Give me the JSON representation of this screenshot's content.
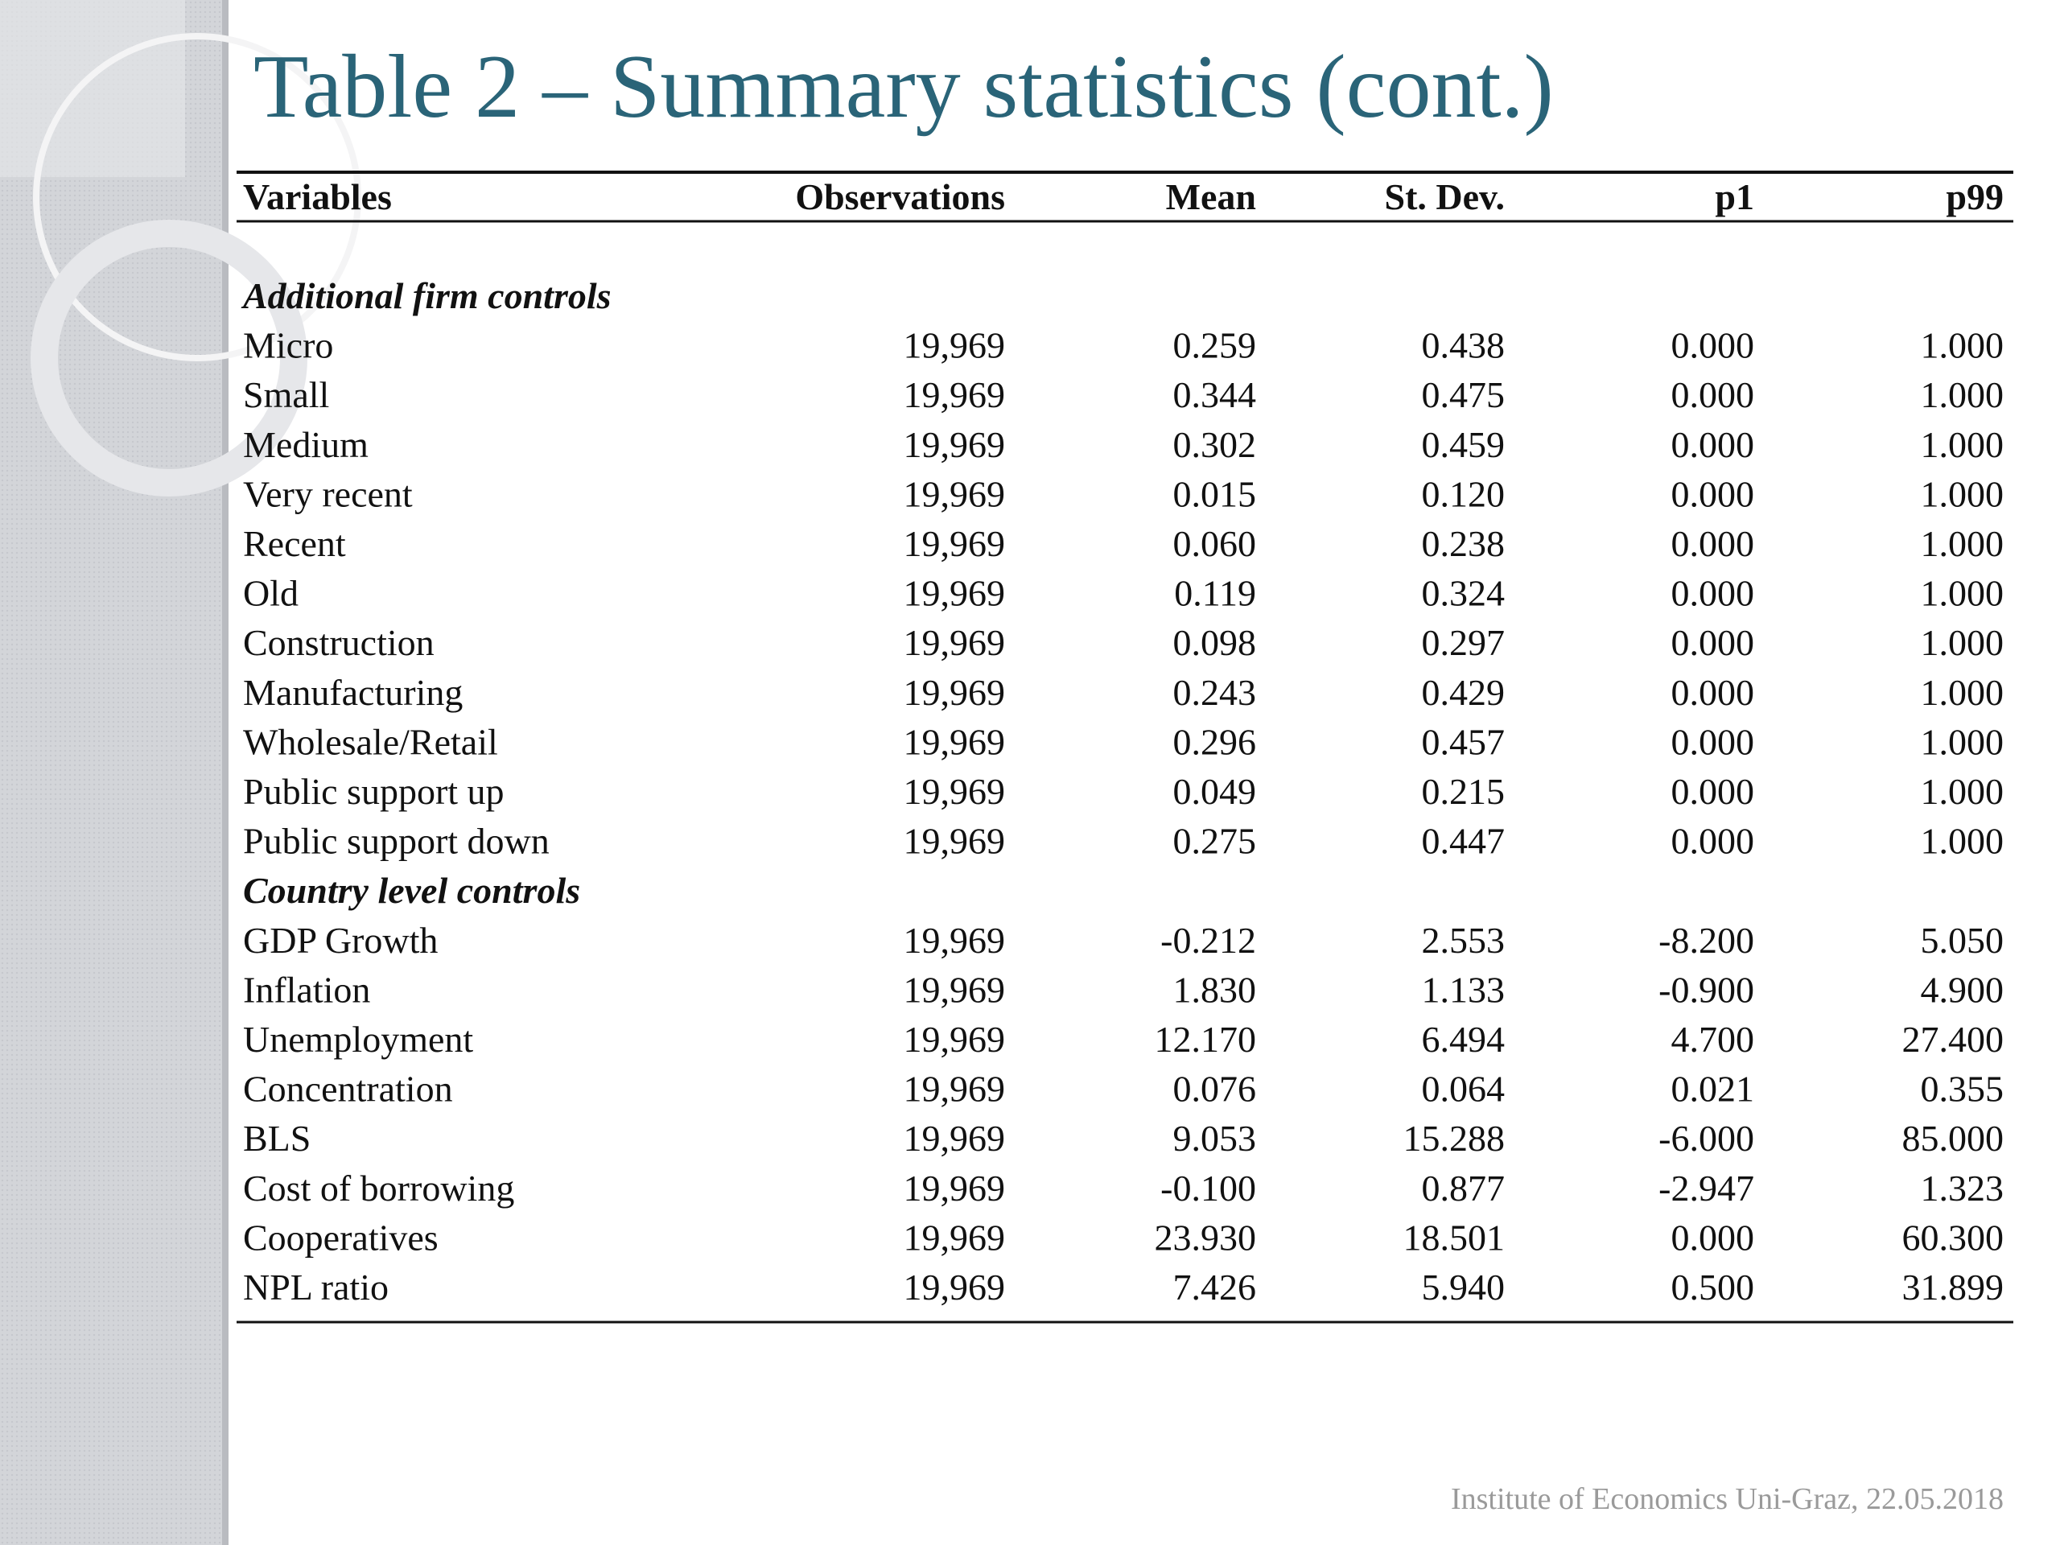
{
  "header": {
    "title": "Table 2 – Summary statistics (cont.)"
  },
  "table": {
    "columns": [
      "Variables",
      "Observations",
      "Mean",
      "St. Dev.",
      "p1",
      "p99"
    ],
    "sections": [
      {
        "title": "Additional firm controls",
        "rows": [
          [
            "Micro",
            "19,969",
            "0.259",
            "0.438",
            "0.000",
            "1.000"
          ],
          [
            "Small",
            "19,969",
            "0.344",
            "0.475",
            "0.000",
            "1.000"
          ],
          [
            "Medium",
            "19,969",
            "0.302",
            "0.459",
            "0.000",
            "1.000"
          ],
          [
            "Very recent",
            "19,969",
            "0.015",
            "0.120",
            "0.000",
            "1.000"
          ],
          [
            "Recent",
            "19,969",
            "0.060",
            "0.238",
            "0.000",
            "1.000"
          ],
          [
            "Old",
            "19,969",
            "0.119",
            "0.324",
            "0.000",
            "1.000"
          ],
          [
            "Construction",
            "19,969",
            "0.098",
            "0.297",
            "0.000",
            "1.000"
          ],
          [
            "Manufacturing",
            "19,969",
            "0.243",
            "0.429",
            "0.000",
            "1.000"
          ],
          [
            "Wholesale/Retail",
            "19,969",
            "0.296",
            "0.457",
            "0.000",
            "1.000"
          ],
          [
            "Public support up",
            "19,969",
            "0.049",
            "0.215",
            "0.000",
            "1.000"
          ],
          [
            "Public support down",
            "19,969",
            "0.275",
            "0.447",
            "0.000",
            "1.000"
          ]
        ]
      },
      {
        "title": "Country level controls",
        "rows": [
          [
            "GDP Growth",
            "19,969",
            "-0.212",
            "2.553",
            "-8.200",
            "5.050"
          ],
          [
            "Inflation",
            "19,969",
            "1.830",
            "1.133",
            "-0.900",
            "4.900"
          ],
          [
            "Unemployment",
            "19,969",
            "12.170",
            "6.494",
            "4.700",
            "27.400"
          ],
          [
            "Concentration",
            "19,969",
            "0.076",
            "0.064",
            "0.021",
            "0.355"
          ],
          [
            "BLS",
            "19,969",
            "9.053",
            "15.288",
            "-6.000",
            "85.000"
          ],
          [
            "Cost of borrowing",
            "19,969",
            "-0.100",
            "0.877",
            "-2.947",
            "1.323"
          ],
          [
            "Cooperatives",
            "19,969",
            "23.930",
            "18.501",
            "0.000",
            "60.300"
          ],
          [
            "NPL ratio",
            "19,969",
            "7.426",
            "5.940",
            "0.500",
            "31.899"
          ]
        ]
      }
    ]
  },
  "footer": {
    "text": "Institute of Economics Uni-Graz, 22.05.2018"
  }
}
